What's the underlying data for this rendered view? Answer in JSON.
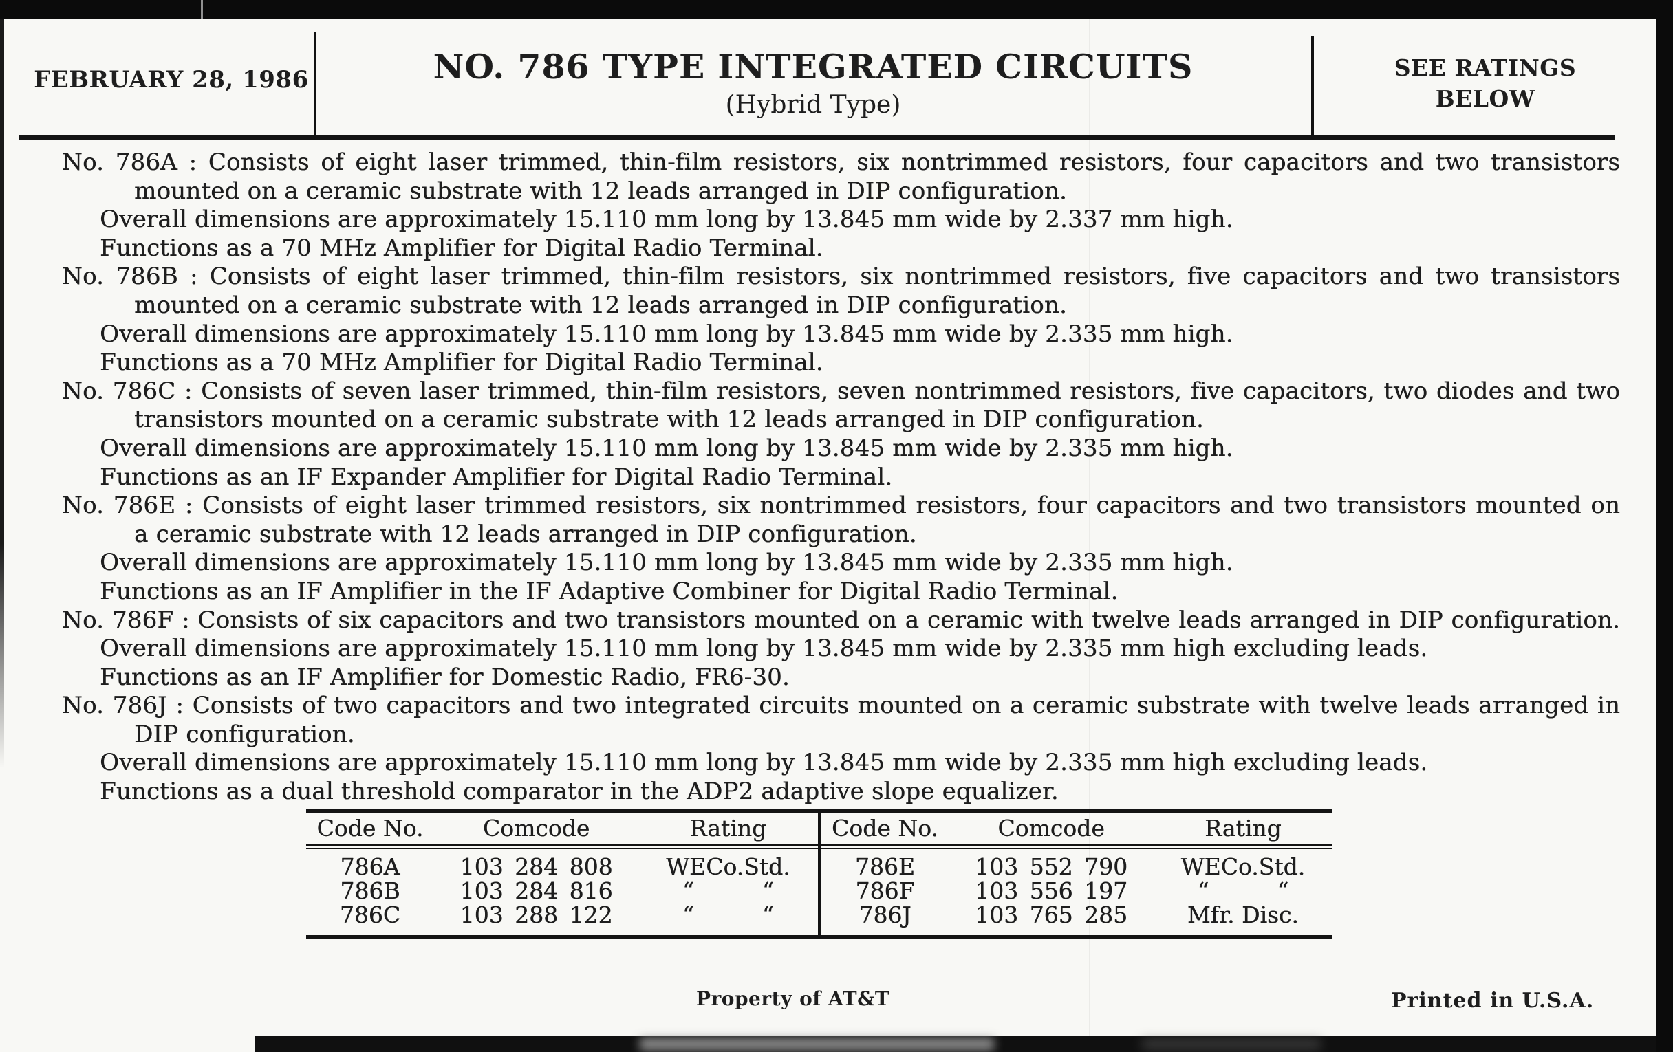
{
  "header": {
    "date": "FEBRUARY 28, 1986",
    "title": "NO. 786 TYPE INTEGRATED CIRCUITS",
    "subtitle": "(Hybrid Type)",
    "ratings_line1": "SEE RATINGS",
    "ratings_line2": "BELOW"
  },
  "body": {
    "paragraphs": [
      {
        "code": "786A",
        "lines": [
          {
            "text": "No. 786A : Consists of eight laser trimmed, thin-film resistors, six nontrimmed resistors, four capacitors and two transistors",
            "indent": "first",
            "justify": true
          },
          {
            "text": "mounted on a ceramic substrate with 12 leads arranged in DIP configuration.",
            "indent": "cont",
            "justify": false
          },
          {
            "text": "Overall dimensions are approximately 15.110 mm long by 13.845 mm wide by 2.337 mm high.",
            "indent": "sub",
            "justify": false
          },
          {
            "text": "Functions as a 70 MHz Amplifier for Digital Radio Terminal.",
            "indent": "sub",
            "justify": false
          }
        ]
      },
      {
        "code": "786B",
        "lines": [
          {
            "text": "No. 786B : Consists of eight laser trimmed, thin-film resistors, six nontrimmed resistors, five capacitors and two transistors",
            "indent": "first",
            "justify": true
          },
          {
            "text": "mounted on a ceramic substrate with 12 leads arranged in DIP configuration.",
            "indent": "cont",
            "justify": false
          },
          {
            "text": "Overall dimensions are approximately 15.110 mm long by 13.845 mm wide by 2.335 mm high.",
            "indent": "sub",
            "justify": false
          },
          {
            "text": "Functions as a 70 MHz Amplifier for Digital Radio Terminal.",
            "indent": "sub",
            "justify": false
          }
        ]
      },
      {
        "code": "786C",
        "lines": [
          {
            "text": "No. 786C : Consists of seven laser trimmed, thin-film resistors, seven nontrimmed resistors, five capacitors, two diodes and two",
            "indent": "first",
            "justify": true
          },
          {
            "text": "transistors mounted on a ceramic substrate with 12 leads arranged in DIP configuration.",
            "indent": "cont",
            "justify": false
          },
          {
            "text": "Overall dimensions are approximately 15.110 mm long by 13.845 mm wide by 2.335 mm high.",
            "indent": "sub",
            "justify": false
          },
          {
            "text": "Functions as an IF Expander Amplifier for Digital Radio Terminal.",
            "indent": "sub",
            "justify": false
          }
        ]
      },
      {
        "code": "786E",
        "lines": [
          {
            "text": "No. 786E : Consists of eight laser trimmed resistors, six nontrimmed resistors, four capacitors and two transistors mounted on",
            "indent": "first",
            "justify": true
          },
          {
            "text": "a ceramic substrate with 12 leads arranged in DIP configuration.",
            "indent": "cont",
            "justify": false
          },
          {
            "text": "Overall dimensions are approximately 15.110 mm long by 13.845 mm wide by 2.335 mm high.",
            "indent": "sub",
            "justify": false
          },
          {
            "text": "Functions as an IF Amplifier in the IF Adaptive Combiner for Digital Radio Terminal.",
            "indent": "sub",
            "justify": false
          }
        ]
      },
      {
        "code": "786F",
        "lines": [
          {
            "text": "No. 786F : Consists of six capacitors and two transistors mounted on a ceramic with twelve leads arranged in DIP configuration.",
            "indent": "first",
            "justify": true
          },
          {
            "text": "Overall dimensions are approximately 15.110 mm long by 13.845 mm wide by 2.335 mm high excluding leads.",
            "indent": "sub",
            "justify": false
          },
          {
            "text": "Functions as an IF Amplifier for Domestic Radio, FR6-30.",
            "indent": "sub",
            "justify": false
          }
        ]
      },
      {
        "code": "786J",
        "lines": [
          {
            "text": "No. 786J : Consists of two capacitors and two integrated circuits mounted on a ceramic substrate with twelve leads arranged in",
            "indent": "first",
            "justify": true
          },
          {
            "text": "DIP configuration.",
            "indent": "cont",
            "justify": false
          },
          {
            "text": "Overall dimensions are approximately 15.110 mm long by 13.845 mm wide by 2.335 mm high excluding leads.",
            "indent": "sub",
            "justify": false
          },
          {
            "text": "Functions as a dual threshold comparator in the ADP2 adaptive slope equalizer.",
            "indent": "sub",
            "justify": false
          }
        ]
      }
    ]
  },
  "table": {
    "left": {
      "headers": [
        "Code No.",
        "Comcode",
        "Rating"
      ],
      "rows": [
        [
          "786A",
          "103 284 808",
          "WECo.Std."
        ],
        [
          "786B",
          "103 284 816",
          "“   “"
        ],
        [
          "786C",
          "103 288 122",
          "“   “"
        ]
      ]
    },
    "right": {
      "headers": [
        "Code No.",
        "Comcode",
        "Rating"
      ],
      "rows": [
        [
          "786E",
          "103 552 790",
          "WECo.Std."
        ],
        [
          "786F",
          "103 556 197",
          "“   “"
        ],
        [
          "786J",
          "103 765 285",
          "Mfr. Disc."
        ]
      ]
    }
  },
  "footer": {
    "property": "Property of AT&T",
    "printed": "Printed in U.S.A."
  }
}
